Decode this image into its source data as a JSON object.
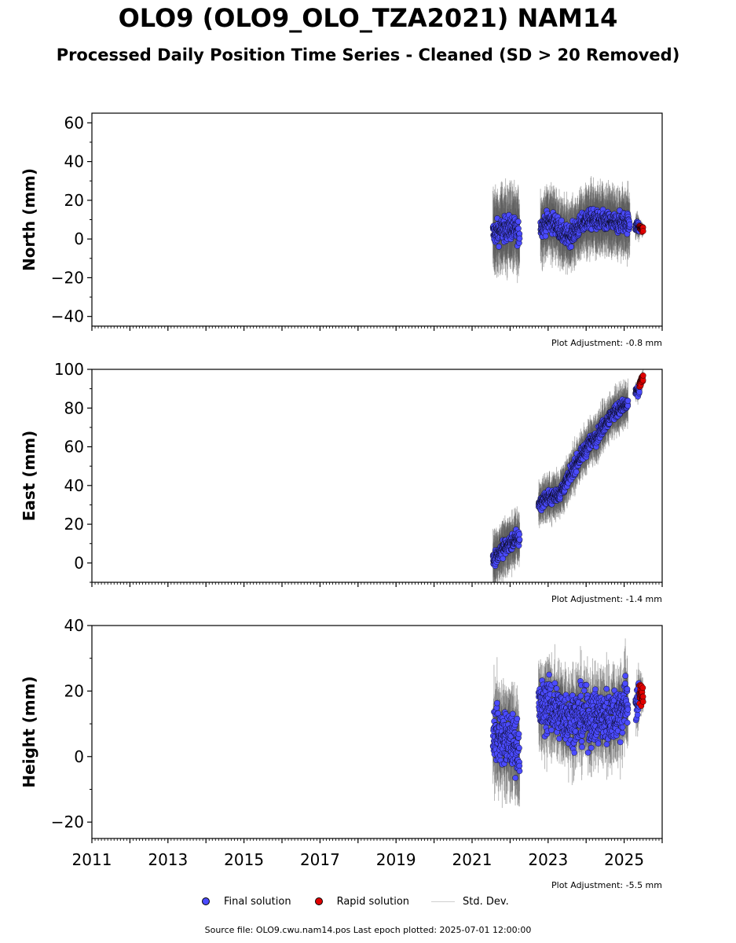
{
  "header": {
    "title": "OLO9 (OLO9_OLO_TZA2021) NAM14",
    "subtitle": "Processed Daily Position Time Series - Cleaned (SD > 20 Removed)"
  },
  "legend": {
    "final_label": "Final solution",
    "rapid_label": "Rapid solution",
    "std_label": "Std. Dev."
  },
  "footer": {
    "source": "Source file: OLO9.cwu.nam14.pos  Last epoch plotted: 2025-07-01 12:00:00"
  },
  "colors": {
    "final": "#4b4bff",
    "rapid": "#e00000",
    "std": "#555555",
    "edge": "#000000"
  },
  "chart_data": [
    {
      "type": "scatter",
      "ylabel": "North (mm)",
      "ylim": [
        -45,
        65
      ],
      "yticks": [
        -40,
        -20,
        0,
        20,
        40,
        60
      ],
      "xlim": [
        2011,
        2026
      ],
      "xticks": [
        2011,
        2013,
        2015,
        2017,
        2019,
        2021,
        2023,
        2025
      ],
      "adjustment": "Plot Adjustment: -0.8 mm",
      "series": [
        {
          "name": "Final solution",
          "segments": [
            {
              "x": [
                2021.55,
                2021.7,
                2021.85,
                2022.0,
                2022.1,
                2022.2,
                2022.25
              ],
              "y": [
                3,
                4,
                5,
                6,
                5,
                4,
                3
              ],
              "spread": 6,
              "err": 18
            },
            {
              "x": [
                2022.8,
                2023.0,
                2023.2,
                2023.4,
                2023.6,
                2023.8,
                2024.0,
                2024.2,
                2024.4,
                2024.6,
                2024.8,
                2025.0,
                2025.15
              ],
              "y": [
                6,
                9,
                8,
                2,
                2,
                6,
                10,
                10,
                9,
                9,
                8,
                9,
                8
              ],
              "spread": 5,
              "err": 15
            },
            {
              "x": [
                2025.3,
                2025.4
              ],
              "y": [
                7,
                6
              ],
              "spread": 3,
              "err": 5
            }
          ]
        },
        {
          "name": "Rapid solution",
          "segments": [
            {
              "x": [
                2025.4,
                2025.5
              ],
              "y": [
                6,
                5
              ],
              "spread": 1.5,
              "err": 3
            }
          ]
        }
      ]
    },
    {
      "type": "scatter",
      "ylabel": "East (mm)",
      "ylim": [
        -10,
        100
      ],
      "yticks": [
        0,
        20,
        40,
        60,
        80,
        100
      ],
      "xlim": [
        2011,
        2026
      ],
      "xticks": [
        2011,
        2013,
        2015,
        2017,
        2019,
        2021,
        2023,
        2025
      ],
      "adjustment": "Plot Adjustment: -1.4 mm",
      "series": [
        {
          "name": "Final solution",
          "segments": [
            {
              "x": [
                2021.55,
                2021.7,
                2021.85,
                2022.0,
                2022.15,
                2022.25
              ],
              "y": [
                2,
                5,
                8,
                10,
                12,
                13
              ],
              "spread": 4,
              "err": 12
            },
            {
              "x": [
                2022.75,
                2022.9,
                2023.1,
                2023.3,
                2023.5,
                2023.7,
                2023.9,
                2024.1,
                2024.3,
                2024.5,
                2024.7,
                2024.9,
                2025.1
              ],
              "y": [
                30,
                33,
                34,
                36,
                42,
                50,
                56,
                62,
                66,
                72,
                77,
                80,
                82
              ],
              "spread": 3.5,
              "err": 10
            },
            {
              "x": [
                2025.3,
                2025.4
              ],
              "y": [
                88,
                89
              ],
              "spread": 2,
              "err": 4
            }
          ]
        },
        {
          "name": "Rapid solution",
          "segments": [
            {
              "x": [
                2025.4,
                2025.5
              ],
              "y": [
                92,
                96
              ],
              "spread": 2,
              "err": 3
            }
          ]
        }
      ]
    },
    {
      "type": "scatter",
      "ylabel": "Height (mm)",
      "ylim": [
        -25,
        40
      ],
      "yticks": [
        -20,
        0,
        20,
        40
      ],
      "xlim": [
        2011,
        2026
      ],
      "xticks": [
        2011,
        2013,
        2015,
        2017,
        2019,
        2021,
        2023,
        2025
      ],
      "xticklabels": [
        "2011",
        "2013",
        "2015",
        "2017",
        "2019",
        "2021",
        "2023",
        "2025"
      ],
      "adjustment": "Plot Adjustment: -5.5 mm",
      "series": [
        {
          "name": "Final solution",
          "segments": [
            {
              "x": [
                2021.55,
                2021.75,
                2021.95,
                2022.15,
                2022.25
              ],
              "y": [
                8,
                6,
                5,
                4,
                3
              ],
              "spread": 8,
              "err": 12
            },
            {
              "x": [
                2022.75,
                2023.0,
                2023.3,
                2023.6,
                2023.9,
                2024.2,
                2024.5,
                2024.8,
                2025.1
              ],
              "y": [
                14,
                16,
                13,
                12,
                12,
                12,
                12,
                13,
                17
              ],
              "spread": 8,
              "err": 10
            },
            {
              "x": [
                2025.3,
                2025.4
              ],
              "y": [
                16,
                17
              ],
              "spread": 5,
              "err": 6
            }
          ]
        },
        {
          "name": "Rapid solution",
          "segments": [
            {
              "x": [
                2025.4,
                2025.5
              ],
              "y": [
                19,
                19
              ],
              "spread": 3,
              "err": 4
            }
          ]
        }
      ]
    }
  ]
}
